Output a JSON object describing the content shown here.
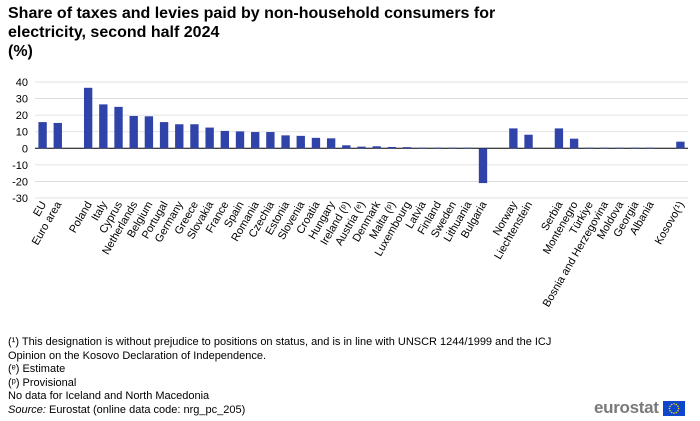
{
  "chart_data": {
    "type": "bar",
    "title_line1": "Share of taxes and levies paid by non-household consumers for",
    "title_line2": "electricity, second half 2024",
    "unit": "(%)",
    "xlabel": "",
    "ylabel": "",
    "ylim": [
      -30,
      40
    ],
    "yticks": [
      -30,
      -20,
      -10,
      0,
      10,
      20,
      30,
      40
    ],
    "grid": true,
    "legend": "none",
    "bar_color": "#2f43a8",
    "categories": [
      "EU",
      "Euro area",
      "",
      "Poland",
      "Italy",
      "Cyprus",
      "Netherlands",
      "Belgium",
      "Portugal",
      "Germany",
      "Greece",
      "Slovakia",
      "France",
      "Spain",
      "Romania",
      "Czechia",
      "Estonia",
      "Slovenia",
      "Croatia",
      "Hungary",
      "Ireland (ᵖ)",
      "Austria (ᵉ)",
      "Denmark",
      "Malta (ᵖ)",
      "Luxembourg",
      "Latvia",
      "Finland",
      "Sweden",
      "Lithuania",
      "Bulgaria",
      "",
      "Norway",
      "Liechtenstein",
      "",
      "Serbia",
      "Montenegro",
      "Türkiye",
      "Bosnia and Herzegovina",
      "Moldova",
      "Georgia",
      "Albania",
      "",
      "Kosovo(¹)"
    ],
    "values": [
      15.8,
      15.3,
      null,
      36.5,
      26.5,
      25.0,
      19.5,
      19.3,
      15.8,
      14.5,
      14.5,
      12.5,
      10.5,
      10.2,
      9.8,
      9.8,
      7.8,
      7.5,
      6.3,
      6.0,
      1.8,
      1.0,
      1.2,
      0.8,
      0.7,
      0.3,
      0.3,
      0.3,
      0.0,
      -21.0,
      null,
      12.0,
      8.2,
      null,
      12.0,
      5.8,
      0.3,
      0.0,
      0.0,
      0.0,
      0.0,
      null,
      4.0
    ]
  },
  "notes": {
    "kosovo_line1": "(¹) This designation is without prejudice to positions on status, and is in line with UNSCR 1244/1999 and the ICJ",
    "kosovo_line2": "Opinion on the Kosovo Declaration of Independence.",
    "estimate": "(ᵉ) Estimate",
    "provisional": "(ᵖ) Provisional",
    "no_data": "No data for Iceland and North Macedonia",
    "source_label": "Source:",
    "source_text": " Eurostat (online data code: nrg_pc_205)"
  },
  "logo": {
    "text": "eurostat",
    "flag_color": "#0e47cb",
    "star_color": "#ffdd00"
  }
}
